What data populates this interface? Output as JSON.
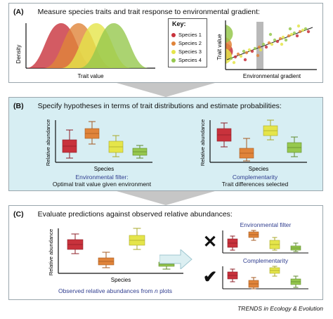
{
  "panels": {
    "a": {
      "label": "(A)",
      "title": "Measure species traits and trait response to environmental gradient:"
    },
    "b": {
      "label": "(B)",
      "title": "Specify hypotheses in terms of trait distributions and estimate probabilities:"
    },
    "c": {
      "label": "(C)",
      "title": "Evaluate predictions against observed relative abundances:"
    }
  },
  "density_plot": {
    "ylabel": "Density",
    "xlabel": "Trait value"
  },
  "key": {
    "title": "Key:",
    "items": [
      {
        "label": "Species 1",
        "color": "#c8323c"
      },
      {
        "label": "Species 2",
        "color": "#e0843a"
      },
      {
        "label": "Species 3",
        "color": "#e5e54a"
      },
      {
        "label": "Species 4",
        "color": "#96c84e"
      }
    ]
  },
  "scatter_plot": {
    "ylabel": "Trait value",
    "xlabel": "Environmental gradient"
  },
  "hypotheses": {
    "env_filter": {
      "ylabel": "Relative abundance",
      "xlabel": "Species",
      "name": "Environmental filter:",
      "description": "Optimal trait value given environment"
    },
    "complementarity": {
      "ylabel": "Relative abundance",
      "xlabel": "Species",
      "name": "Complementarity",
      "description": "Trait differences selected"
    }
  },
  "observed": {
    "ylabel": "Relative abundance",
    "xlabel": "Species",
    "caption_prefix": "Observed relative abundances from ",
    "caption_n": "n",
    "caption_suffix": " plots"
  },
  "evaluation": {
    "env_label": "Environmental filter",
    "env_mark": "✕",
    "comp_label": "Complementarity",
    "comp_mark": "✔"
  },
  "footer": "TRENDS in Ecology & Evolution",
  "colors": {
    "species1": "#c8323c",
    "species2": "#e0843a",
    "species3": "#e5e54a",
    "species4": "#96c84e",
    "panel_b_bg": "#d7eef3",
    "accent_text": "#2f3d8f"
  }
}
